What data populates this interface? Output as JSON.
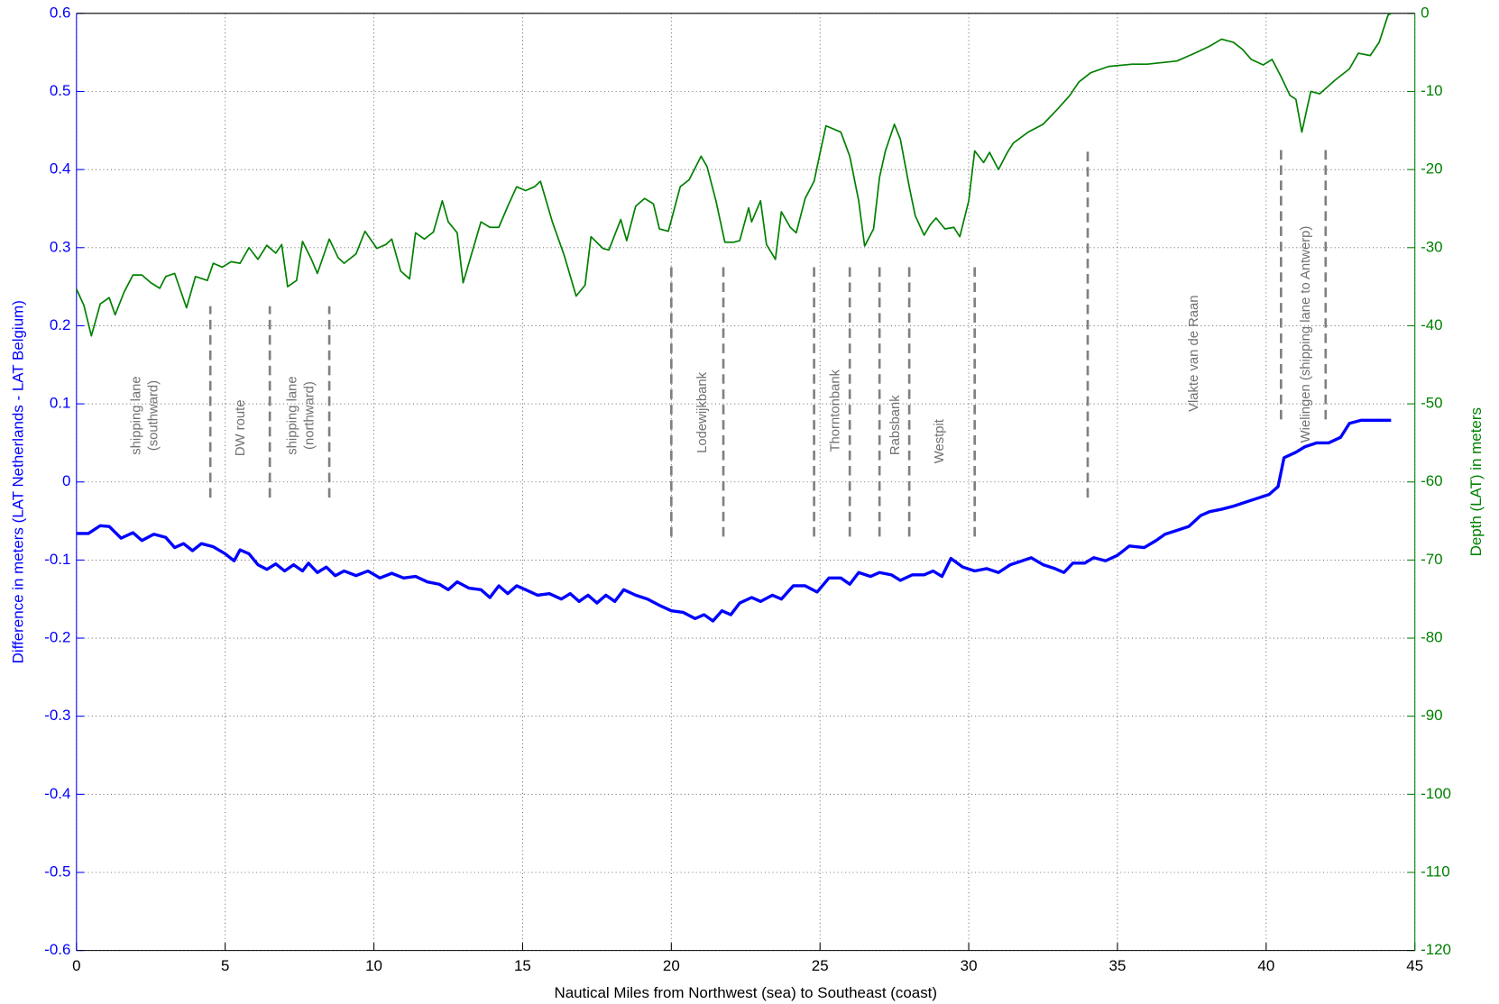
{
  "chart_data": {
    "type": "line",
    "x_label": "Nautical Miles from Northwest (sea) to Southeast (coast)",
    "y_label": "Difference in meters (LAT Netherlands - LAT Belgium)",
    "y2_label": "Depth (LAT) in meters",
    "xlim": [
      0,
      45
    ],
    "xticks": [
      0,
      5,
      10,
      15,
      20,
      25,
      30,
      35,
      40,
      45
    ],
    "ylim": [
      -0.6,
      0.6
    ],
    "yticks": [
      -0.6,
      -0.5,
      -0.4,
      -0.3,
      -0.2,
      -0.1,
      0,
      0.1,
      0.2,
      0.3,
      0.4,
      0.5,
      0.6
    ],
    "y2lim": [
      -120,
      0
    ],
    "y2ticks": [
      -120,
      -110,
      -100,
      -90,
      -80,
      -70,
      -60,
      -50,
      -40,
      -30,
      -20,
      -10,
      0
    ],
    "grid": true,
    "series": [
      {
        "color": "#0000ff",
        "x": [
          0,
          0.4,
          0.8,
          1.1,
          1.5,
          1.9,
          2.2,
          2.6,
          3.0,
          3.3,
          3.6,
          3.9,
          4.2,
          4.6,
          5.0,
          5.3,
          5.5,
          5.8,
          6.1,
          6.4,
          6.7,
          7.0,
          7.3,
          7.6,
          7.8,
          8.1,
          8.4,
          8.7,
          9.0,
          9.4,
          9.8,
          10.2,
          10.6,
          11.0,
          11.4,
          11.8,
          12.2,
          12.5,
          12.8,
          13.2,
          13.6,
          13.9,
          14.2,
          14.5,
          14.8,
          15.1,
          15.5,
          15.9,
          16.3,
          16.6,
          16.9,
          17.2,
          17.5,
          17.8,
          18.1,
          18.4,
          18.8,
          19.2,
          19.6,
          20.0,
          20.4,
          20.8,
          21.1,
          21.4,
          21.7,
          22.0,
          22.3,
          22.7,
          23.0,
          23.4,
          23.7,
          24.1,
          24.5,
          24.9,
          25.3,
          25.7,
          26.0,
          26.3,
          26.7,
          27.0,
          27.4,
          27.7,
          28.1,
          28.5,
          28.8,
          29.1,
          29.4,
          29.8,
          30.2,
          30.6,
          31.0,
          31.4,
          31.8,
          32.1,
          32.5,
          32.9,
          33.2,
          33.5,
          33.9,
          34.2,
          34.6,
          35.0,
          35.4,
          35.9,
          36.3,
          36.6,
          37.0,
          37.4,
          37.8,
          38.1,
          38.5,
          38.9,
          39.3,
          39.7,
          40.1,
          40.4,
          40.6,
          41.0,
          41.3,
          41.7,
          42.1,
          42.5,
          42.8,
          43.2,
          44.2
        ],
        "values": [
          -0.066,
          -0.066,
          -0.056,
          -0.057,
          -0.072,
          -0.065,
          -0.075,
          -0.067,
          -0.071,
          -0.084,
          -0.079,
          -0.088,
          -0.079,
          -0.083,
          -0.092,
          -0.101,
          -0.087,
          -0.092,
          -0.106,
          -0.112,
          -0.105,
          -0.114,
          -0.106,
          -0.114,
          -0.104,
          -0.116,
          -0.109,
          -0.12,
          -0.114,
          -0.12,
          -0.114,
          -0.123,
          -0.117,
          -0.123,
          -0.121,
          -0.128,
          -0.131,
          -0.138,
          -0.128,
          -0.136,
          -0.138,
          -0.148,
          -0.133,
          -0.143,
          -0.133,
          -0.138,
          -0.145,
          -0.143,
          -0.15,
          -0.143,
          -0.153,
          -0.145,
          -0.155,
          -0.145,
          -0.153,
          -0.138,
          -0.145,
          -0.15,
          -0.158,
          -0.165,
          -0.167,
          -0.175,
          -0.17,
          -0.178,
          -0.165,
          -0.17,
          -0.155,
          -0.148,
          -0.153,
          -0.145,
          -0.15,
          -0.133,
          -0.133,
          -0.141,
          -0.123,
          -0.123,
          -0.131,
          -0.116,
          -0.121,
          -0.116,
          -0.119,
          -0.126,
          -0.119,
          -0.119,
          -0.114,
          -0.121,
          -0.098,
          -0.109,
          -0.114,
          -0.111,
          -0.116,
          -0.106,
          -0.101,
          -0.097,
          -0.106,
          -0.111,
          -0.116,
          -0.104,
          -0.104,
          -0.097,
          -0.101,
          -0.094,
          -0.082,
          -0.084,
          -0.075,
          -0.067,
          -0.062,
          -0.057,
          -0.043,
          -0.038,
          -0.035,
          -0.031,
          -0.026,
          -0.021,
          -0.016,
          -0.006,
          0.031,
          0.038,
          0.045,
          0.05,
          0.05,
          0.057,
          0.075,
          0.079,
          0.079
        ]
      },
      {
        "color": "#008000",
        "axis": "y2",
        "x": [
          0,
          0.25,
          0.5,
          0.8,
          1.1,
          1.3,
          1.6,
          1.9,
          2.2,
          2.5,
          2.8,
          3.0,
          3.3,
          3.7,
          4.0,
          4.4,
          4.6,
          4.9,
          5.2,
          5.5,
          5.8,
          6.1,
          6.4,
          6.7,
          6.9,
          7.1,
          7.4,
          7.6,
          7.9,
          8.1,
          8.5,
          8.8,
          9.0,
          9.4,
          9.7,
          10.1,
          10.4,
          10.6,
          10.9,
          11.2,
          11.4,
          11.7,
          12.0,
          12.3,
          12.5,
          12.8,
          13.0,
          13.4,
          13.6,
          13.9,
          14.2,
          14.5,
          14.8,
          15.1,
          15.4,
          15.6,
          16.0,
          16.4,
          16.8,
          17.1,
          17.3,
          17.7,
          17.9,
          18.3,
          18.5,
          18.8,
          19.1,
          19.4,
          19.6,
          19.9,
          20.3,
          20.6,
          21.0,
          21.2,
          21.5,
          21.8,
          22.1,
          22.3,
          22.6,
          22.7,
          23.0,
          23.2,
          23.5,
          23.7,
          24.0,
          24.2,
          24.5,
          24.8,
          25.0,
          25.2,
          25.7,
          26.0,
          26.3,
          26.5,
          26.8,
          27.0,
          27.2,
          27.5,
          27.7,
          28.0,
          28.2,
          28.5,
          28.7,
          28.9,
          29.2,
          29.5,
          29.7,
          30.0,
          30.2,
          30.5,
          30.7,
          31.0,
          31.3,
          31.5,
          32.0,
          32.5,
          33.0,
          33.4,
          33.7,
          34.1,
          34.7,
          35.5,
          36.0,
          37.0,
          37.6,
          38.1,
          38.5,
          38.9,
          39.2,
          39.5,
          39.9,
          40.2,
          40.5,
          40.8,
          41.0,
          41.2,
          41.5,
          41.8,
          42.3,
          42.8,
          43.1,
          43.5,
          43.8,
          44.1,
          44.2
        ],
        "values": [
          -35.3,
          -37.4,
          -41.3,
          -37.2,
          -36.4,
          -38.6,
          -35.7,
          -33.5,
          -33.5,
          -34.5,
          -35.2,
          -33.7,
          -33.3,
          -37.7,
          -33.7,
          -34.2,
          -32.0,
          -32.5,
          -31.8,
          -32.0,
          -30,
          -31.5,
          -29.7,
          -30.7,
          -29.6,
          -35,
          -34.2,
          -29.2,
          -31.5,
          -33.3,
          -28.9,
          -31.3,
          -32,
          -30.8,
          -27.9,
          -30.1,
          -29.6,
          -28.9,
          -33,
          -34,
          -28.1,
          -28.9,
          -28,
          -24,
          -26.7,
          -28.1,
          -34.5,
          -29.3,
          -26.7,
          -27.4,
          -27.4,
          -24.7,
          -22.2,
          -22.7,
          -22.2,
          -21.5,
          -26.7,
          -31,
          -36.2,
          -34.8,
          -28.6,
          -30.1,
          -30.3,
          -26.4,
          -29.1,
          -24.7,
          -23.7,
          -24.4,
          -27.6,
          -27.9,
          -22.2,
          -21.3,
          -18.3,
          -19.6,
          -24,
          -29.3,
          -29.3,
          -29.1,
          -24.9,
          -26.7,
          -24,
          -29.6,
          -31.5,
          -25.4,
          -27.4,
          -28.1,
          -23.7,
          -21.5,
          -17.9,
          -14.4,
          -15.2,
          -18.3,
          -24,
          -29.8,
          -27.6,
          -21,
          -17.6,
          -14.2,
          -16.1,
          -22.2,
          -25.9,
          -28.4,
          -27.1,
          -26.2,
          -27.6,
          -27.4,
          -28.6,
          -24,
          -17.6,
          -19.1,
          -17.8,
          -20,
          -17.8,
          -16.6,
          -15.2,
          -14.2,
          -12.2,
          -10.5,
          -8.8,
          -7.6,
          -6.8,
          -6.5,
          -6.5,
          -6.1,
          -5.1,
          -4.2,
          -3.3,
          -3.7,
          -4.6,
          -5.9,
          -6.6,
          -5.9,
          -8.1,
          -10.5,
          -11,
          -15.2,
          -10,
          -10.3,
          -8.6,
          -7.1,
          -5.1,
          -5.4,
          -3.7,
          -0.2,
          0
        ]
      }
    ],
    "marker_color": "#808080",
    "markers": [
      {
        "x": 4.5,
        "y": [
          -0.02,
          0.225
        ]
      },
      {
        "x": 6.5,
        "y": [
          -0.02,
          0.225
        ]
      },
      {
        "x": 8.5,
        "y": [
          -0.02,
          0.225
        ]
      },
      {
        "x": 20.0,
        "y": [
          -0.07,
          0.275
        ]
      },
      {
        "x": 21.75,
        "y": [
          -0.07,
          0.275
        ]
      },
      {
        "x": 24.8,
        "y": [
          -0.07,
          0.275
        ]
      },
      {
        "x": 26.0,
        "y": [
          -0.07,
          0.275
        ]
      },
      {
        "x": 27.0,
        "y": [
          -0.07,
          0.275
        ]
      },
      {
        "x": 28.0,
        "y": [
          -0.07,
          0.275
        ]
      },
      {
        "x": 30.2,
        "y": [
          -0.07,
          0.275
        ]
      },
      {
        "x": 34.0,
        "y": [
          -0.02,
          0.425
        ]
      },
      {
        "x": 40.5,
        "y": [
          0.08,
          0.425
        ]
      },
      {
        "x": 42.0,
        "y": [
          0.08,
          0.425
        ]
      }
    ],
    "annotations": [
      [
        "shipping lane",
        "(southward)"
      ],
      [
        "DW route"
      ],
      [
        "shipping lane",
        "(northward)"
      ],
      [
        "Lodewijkbank"
      ],
      [
        "Thorntonbank"
      ],
      [
        "Rabsbank"
      ],
      [
        "Westpit"
      ],
      [
        "Vlakte van de Raan"
      ],
      [
        "Wielingen (shipping lane to Antwerp)"
      ]
    ]
  }
}
